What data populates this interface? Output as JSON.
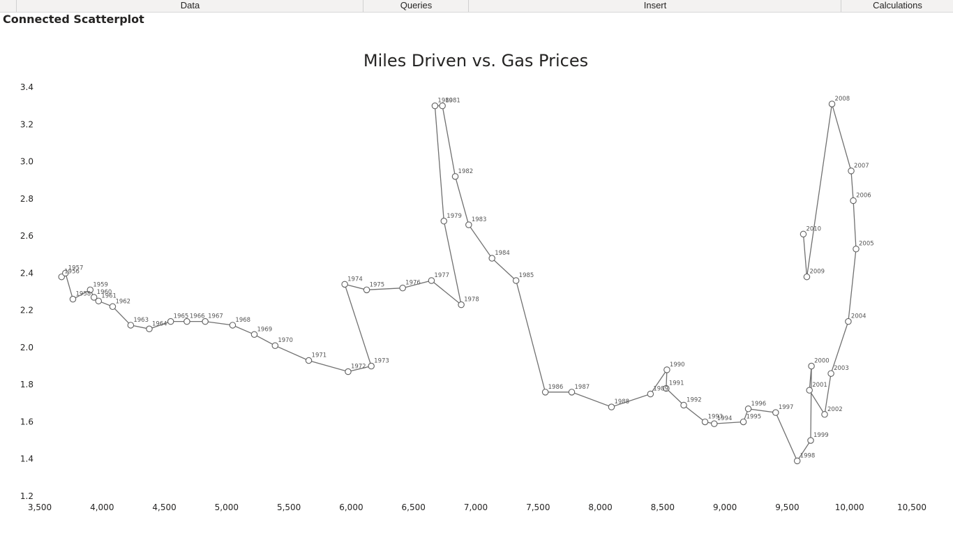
{
  "tabs": [
    {
      "label": "Data"
    },
    {
      "label": "Queries"
    },
    {
      "label": "Insert"
    },
    {
      "label": "Calculations"
    }
  ],
  "visual": {
    "title": "Connected Scatterplot"
  },
  "colors": {
    "line": "#707070",
    "marker_fill": "#ffffff",
    "marker_stroke": "#606060",
    "text": "#252423",
    "label": "#555555"
  },
  "chart_data": {
    "type": "scatter",
    "connected": true,
    "title": "Miles Driven vs. Gas Prices",
    "xlabel": "",
    "ylabel": "",
    "xlim": [
      3500,
      10500
    ],
    "ylim": [
      1.2,
      3.4
    ],
    "x_ticks": [
      "3,500",
      "4,000",
      "4,500",
      "5,000",
      "5,500",
      "6,000",
      "6,500",
      "7,000",
      "7,500",
      "8,000",
      "8,500",
      "9,000",
      "9,500",
      "10,000",
      "10,500"
    ],
    "y_ticks": [
      "1.2",
      "1.4",
      "1.6",
      "1.8",
      "2.0",
      "2.2",
      "2.4",
      "2.6",
      "2.8",
      "3.0",
      "3.2",
      "3.4"
    ],
    "grid": false,
    "legend": "none",
    "series": [
      {
        "points": [
          {
            "label": "1956",
            "x": 3675,
            "y": 2.38
          },
          {
            "label": "1957",
            "x": 3706,
            "y": 2.4
          },
          {
            "label": "1958",
            "x": 3766,
            "y": 2.26
          },
          {
            "label": "1959",
            "x": 3905,
            "y": 2.31
          },
          {
            "label": "1960",
            "x": 3935,
            "y": 2.27
          },
          {
            "label": "1961",
            "x": 3972,
            "y": 2.25
          },
          {
            "label": "1962",
            "x": 4085,
            "y": 2.22
          },
          {
            "label": "1963",
            "x": 4230,
            "y": 2.12
          },
          {
            "label": "1964",
            "x": 4379,
            "y": 2.1
          },
          {
            "label": "1965",
            "x": 4551,
            "y": 2.14
          },
          {
            "label": "1966",
            "x": 4681,
            "y": 2.14
          },
          {
            "label": "1967",
            "x": 4828,
            "y": 2.14
          },
          {
            "label": "1968",
            "x": 5048,
            "y": 2.12
          },
          {
            "label": "1969",
            "x": 5222,
            "y": 2.07
          },
          {
            "label": "1970",
            "x": 5389,
            "y": 2.01
          },
          {
            "label": "1971",
            "x": 5659,
            "y": 1.93
          },
          {
            "label": "1972",
            "x": 5975,
            "y": 1.87
          },
          {
            "label": "1973",
            "x": 6161,
            "y": 1.9
          },
          {
            "label": "1974",
            "x": 5948,
            "y": 2.34
          },
          {
            "label": "1975",
            "x": 6124,
            "y": 2.31
          },
          {
            "label": "1976",
            "x": 6413,
            "y": 2.32
          },
          {
            "label": "1977",
            "x": 6644,
            "y": 2.36
          },
          {
            "label": "1978",
            "x": 6883,
            "y": 2.23
          },
          {
            "label": "1979",
            "x": 6744,
            "y": 2.68
          },
          {
            "label": "1980",
            "x": 6672,
            "y": 3.3
          },
          {
            "label": "1981",
            "x": 6732,
            "y": 3.3
          },
          {
            "label": "1982",
            "x": 6835,
            "y": 2.92
          },
          {
            "label": "1983",
            "x": 6943,
            "y": 2.66
          },
          {
            "label": "1984",
            "x": 7130,
            "y": 2.48
          },
          {
            "label": "1985",
            "x": 7323,
            "y": 2.36
          },
          {
            "label": "1986",
            "x": 7558,
            "y": 1.76
          },
          {
            "label": "1987",
            "x": 7770,
            "y": 1.76
          },
          {
            "label": "1988",
            "x": 8089,
            "y": 1.68
          },
          {
            "label": "1989",
            "x": 8402,
            "y": 1.75
          },
          {
            "label": "1990",
            "x": 8534,
            "y": 1.88
          },
          {
            "label": "1991",
            "x": 8528,
            "y": 1.78
          },
          {
            "label": "1992",
            "x": 8669,
            "y": 1.69
          },
          {
            "label": "1993",
            "x": 8840,
            "y": 1.6
          },
          {
            "label": "1994",
            "x": 8914,
            "y": 1.59
          },
          {
            "label": "1995",
            "x": 9148,
            "y": 1.6
          },
          {
            "label": "1996",
            "x": 9187,
            "y": 1.67
          },
          {
            "label": "1997",
            "x": 9407,
            "y": 1.65
          },
          {
            "label": "1998",
            "x": 9580,
            "y": 1.39
          },
          {
            "label": "1999",
            "x": 9688,
            "y": 1.5
          },
          {
            "label": "2000",
            "x": 9694,
            "y": 1.9
          },
          {
            "label": "2001",
            "x": 9678,
            "y": 1.77
          },
          {
            "label": "2002",
            "x": 9800,
            "y": 1.64
          },
          {
            "label": "2003",
            "x": 9851,
            "y": 1.86
          },
          {
            "label": "2004",
            "x": 9990,
            "y": 2.14
          },
          {
            "label": "2005",
            "x": 10052,
            "y": 2.53
          },
          {
            "label": "2006",
            "x": 10030,
            "y": 2.79
          },
          {
            "label": "2007",
            "x": 10013,
            "y": 2.95
          },
          {
            "label": "2008",
            "x": 9859,
            "y": 3.31
          },
          {
            "label": "2009",
            "x": 9657,
            "y": 2.38
          },
          {
            "label": "2010",
            "x": 9629,
            "y": 2.61
          }
        ]
      }
    ]
  }
}
